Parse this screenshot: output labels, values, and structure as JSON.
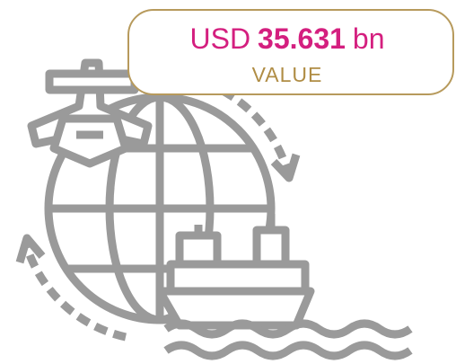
{
  "badge": {
    "currency": "USD",
    "amount": "35.631",
    "unit": "bn",
    "label": "VALUE"
  }
}
